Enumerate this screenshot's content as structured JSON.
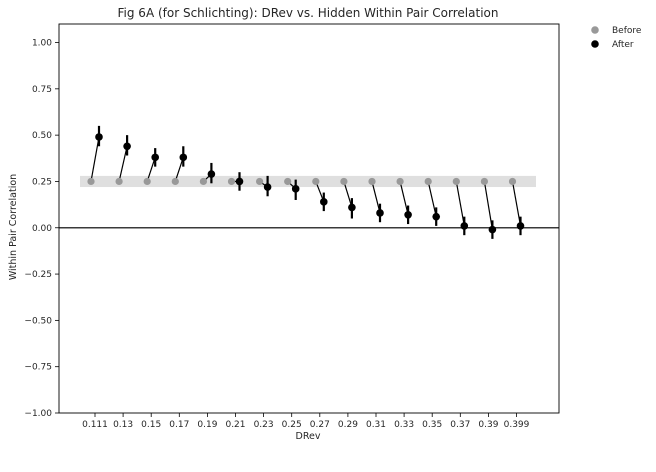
{
  "chart_data": {
    "type": "scatter",
    "title": "Fig 6A (for Schlichting): DRev vs. Hidden Within Pair Correlation",
    "xlabel": "DRev",
    "ylabel": "Within Pair Correlation",
    "ylim": [
      -1.0,
      1.1
    ],
    "yticks": [
      "1.00",
      "0.75",
      "0.50",
      "0.25",
      "0.00",
      "−0.25",
      "−0.50",
      "−0.75",
      "−1.00"
    ],
    "ytick_values": [
      1.0,
      0.75,
      0.5,
      0.25,
      0.0,
      -0.25,
      -0.5,
      -0.75,
      -1.0
    ],
    "categories": [
      "0.111",
      "0.13",
      "0.15",
      "0.17",
      "0.19",
      "0.21",
      "0.23",
      "0.25",
      "0.27",
      "0.29",
      "0.31",
      "0.33",
      "0.35",
      "0.37",
      "0.39",
      "0.399"
    ],
    "reference_band": [
      0.22,
      0.28
    ],
    "reference_line": 0.0,
    "series": [
      {
        "name": "Before",
        "color": "#999999",
        "values": [
          0.25,
          0.25,
          0.25,
          0.25,
          0.25,
          0.25,
          0.25,
          0.25,
          0.25,
          0.25,
          0.25,
          0.25,
          0.25,
          0.25,
          0.25,
          0.25
        ]
      },
      {
        "name": "After",
        "color": "#000000",
        "values": [
          0.49,
          0.44,
          0.38,
          0.38,
          0.29,
          0.25,
          0.22,
          0.21,
          0.14,
          0.11,
          0.08,
          0.07,
          0.06,
          0.01,
          -0.01,
          0.01
        ],
        "err_low": [
          0.44,
          0.39,
          0.33,
          0.33,
          0.24,
          0.2,
          0.17,
          0.15,
          0.09,
          0.05,
          0.03,
          0.02,
          0.01,
          -0.04,
          -0.06,
          -0.04
        ],
        "err_high": [
          0.55,
          0.5,
          0.43,
          0.44,
          0.35,
          0.3,
          0.28,
          0.26,
          0.19,
          0.16,
          0.13,
          0.12,
          0.11,
          0.06,
          0.04,
          0.06
        ]
      }
    ],
    "legend_position": "outside top-right",
    "grid": false
  }
}
